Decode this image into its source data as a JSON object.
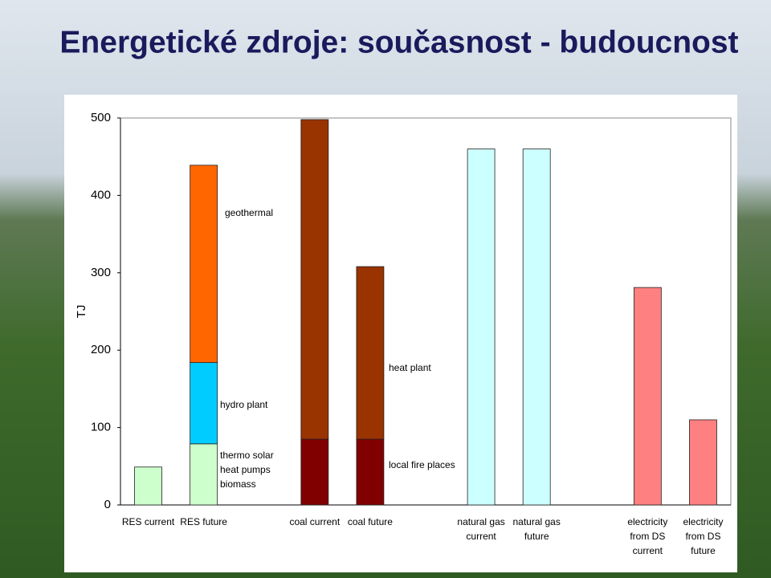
{
  "chart_data": {
    "type": "bar",
    "stacked": true,
    "title": "Energetické zdroje: současnost - budoucnost",
    "y_label": "TJ",
    "categories": [
      [
        "RES current"
      ],
      [
        "RES future"
      ],
      null,
      [
        "coal current"
      ],
      [
        "coal future"
      ],
      null,
      [
        "natural gas",
        "current"
      ],
      [
        "natural gas",
        "future"
      ],
      null,
      [
        "electricity",
        "from DS",
        "current"
      ],
      [
        "electricity",
        "from DS",
        "future"
      ]
    ],
    "series": [
      {
        "name": [
          "thermo solar",
          "heat pumps",
          "biomass"
        ],
        "color": "#ccffcc",
        "values": [
          49,
          79,
          null,
          null,
          null,
          null,
          null,
          null,
          null,
          null,
          null
        ]
      },
      {
        "name": "hydro plant",
        "color": "#00ccff",
        "values": [
          null,
          105,
          null,
          null,
          null,
          null,
          null,
          null,
          null,
          null,
          null
        ]
      },
      {
        "name": "geothermal",
        "color": "#ff6600",
        "values": [
          null,
          255,
          null,
          null,
          null,
          null,
          null,
          null,
          null,
          null,
          null
        ]
      },
      {
        "name": "local fire places",
        "color": "#800000",
        "values": [
          null,
          null,
          null,
          85,
          85,
          null,
          null,
          null,
          null,
          null,
          null
        ]
      },
      {
        "name": "heat plant",
        "color": "#993300",
        "values": [
          null,
          null,
          null,
          413,
          223,
          null,
          null,
          null,
          null,
          null,
          null
        ]
      },
      {
        "color": "#ccffff",
        "values": [
          null,
          null,
          null,
          null,
          null,
          null,
          460,
          460,
          null,
          null,
          null
        ]
      },
      {
        "color": "#ff8080",
        "values": [
          null,
          null,
          null,
          null,
          null,
          null,
          null,
          null,
          null,
          281,
          110
        ]
      }
    ],
    "ylim": [
      0,
      500
    ],
    "yticks": [
      0,
      100,
      200,
      300,
      400,
      500
    ]
  }
}
